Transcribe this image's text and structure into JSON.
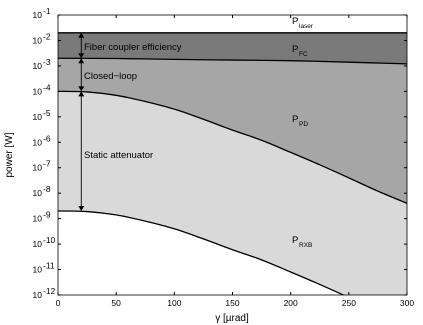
{
  "chart_data": {
    "type": "area",
    "xlabel": "γ [µrad]",
    "ylabel": "power [W]",
    "xlim": [
      0,
      300
    ],
    "ylim_exp": [
      -12,
      -1
    ],
    "y_scale": "log",
    "x_ticks": [
      0,
      50,
      100,
      150,
      200,
      250,
      300
    ],
    "y_tick_exponents": [
      -1,
      -2,
      -3,
      -4,
      -5,
      -6,
      -7,
      -8,
      -9,
      -10,
      -11,
      -12
    ],
    "y_tick_base": "10",
    "series": [
      {
        "name": "P",
        "sub": "laser",
        "color": "#7a7a7a",
        "x": [
          0,
          50,
          100,
          150,
          200,
          250,
          300
        ],
        "y": [
          0.02,
          0.02,
          0.02,
          0.02,
          0.02,
          0.02,
          0.02
        ]
      },
      {
        "name": "P",
        "sub": "FC",
        "color": "#a6a6a6",
        "x": [
          0,
          50,
          100,
          150,
          200,
          250,
          300
        ],
        "y": [
          0.002,
          0.00195,
          0.0018,
          0.0017,
          0.0016,
          0.0014,
          0.0012
        ]
      },
      {
        "name": "P",
        "sub": "PD",
        "color": "#d9d9d9",
        "x": [
          0,
          25,
          50,
          75,
          100,
          125,
          150,
          175,
          200,
          225,
          250,
          275,
          300
        ],
        "y": [
          0.0001,
          9.5e-05,
          7e-05,
          4e-05,
          2e-05,
          8e-06,
          3e-06,
          1.2e-06,
          4e-07,
          1.3e-07,
          4e-08,
          1.2e-08,
          4e-09
        ]
      },
      {
        "name": "P",
        "sub": "RXB",
        "color": "#ffffff",
        "x": [
          0,
          25,
          50,
          75,
          100,
          125,
          150,
          175,
          200,
          225,
          250,
          275,
          300
        ],
        "y": [
          2e-09,
          1.9e-09,
          1.4e-09,
          8e-10,
          4e-10,
          1.6e-10,
          6e-11,
          2.4e-11,
          8e-12,
          2.6e-12,
          8e-13,
          2.4e-13,
          8e-14
        ]
      }
    ],
    "annotations": {
      "fiber": "Fiber coupler efficiency",
      "closed": "Closed−loop",
      "static": "Static attenuator"
    },
    "colors": {
      "band_fc": "#7a7a7a",
      "band_closed": "#a6a6a6",
      "band_static": "#d9d9d9",
      "below": "#ffffff",
      "curve": "#000000"
    }
  }
}
